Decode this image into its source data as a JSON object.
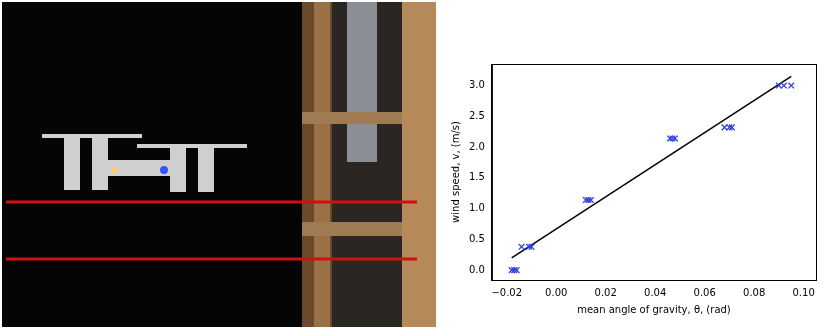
{
  "chart_data": {
    "type": "scatter",
    "x_label": "mean angle of gravity, θ, (rad)",
    "y_label": "wind speed, v, (m/s)",
    "series": [
      {
        "type": "scatter",
        "color": "#3040e0",
        "marker": "x",
        "x": [
          -0.018,
          -0.017,
          -0.016,
          -0.014,
          -0.011,
          -0.01,
          0.012,
          0.013,
          0.014,
          0.046,
          0.047,
          0.048,
          0.068,
          0.07,
          0.071,
          0.09,
          0.092,
          0.095
        ],
        "values": [
          0.0,
          0.0,
          0.0,
          0.38,
          0.38,
          0.38,
          1.14,
          1.14,
          1.14,
          2.14,
          2.14,
          2.14,
          2.32,
          2.32,
          2.32,
          3.0,
          3.0,
          3.0
        ]
      },
      {
        "type": "line",
        "color": "#000000",
        "line_style": "solid",
        "x": [
          -0.018,
          0.095
        ],
        "values": [
          0.2,
          3.15
        ]
      }
    ],
    "xlim": [
      -0.026,
      0.105
    ],
    "ylim": [
      -0.16,
      3.35
    ],
    "xticks": [
      {
        "value": -0.02,
        "label": "−0.02"
      },
      {
        "value": 0,
        "label": "0.00"
      },
      {
        "value": 0.02,
        "label": "0.02"
      },
      {
        "value": 0.04,
        "label": "0.04"
      },
      {
        "value": 0.06,
        "label": "0.06"
      },
      {
        "value": 0.08,
        "label": "0.08"
      },
      {
        "value": 0.1,
        "label": "0.10"
      }
    ],
    "yticks": [
      {
        "value": 0,
        "label": "0.0"
      },
      {
        "value": 0.5,
        "label": "0.5"
      },
      {
        "value": 1,
        "label": "1.0"
      },
      {
        "value": 1.5,
        "label": "1.5"
      },
      {
        "value": 2,
        "label": "2.0"
      },
      {
        "value": 2.5,
        "label": "2.5"
      },
      {
        "value": 3,
        "label": "3.0"
      }
    ],
    "grid": false
  }
}
